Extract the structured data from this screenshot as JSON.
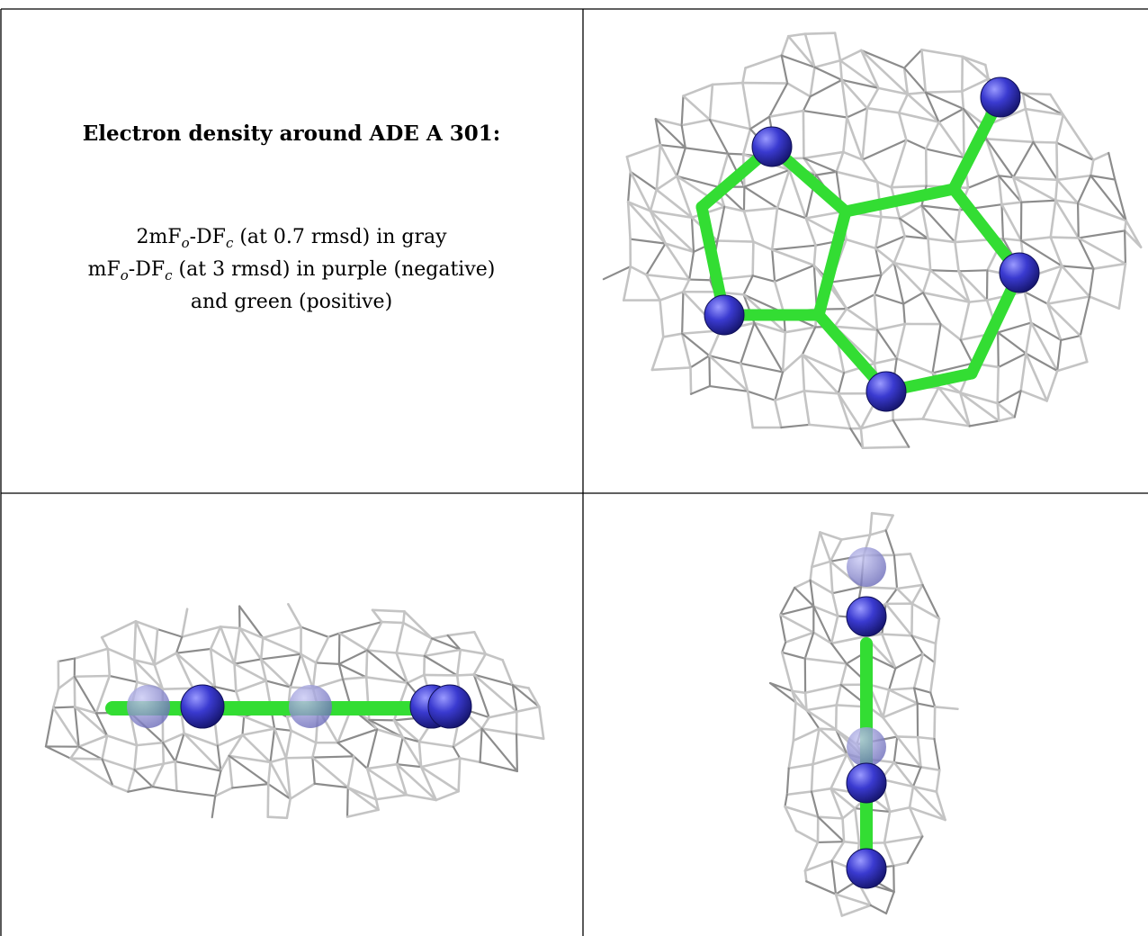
{
  "figure": {
    "title": "Electron density around ADE A 301:",
    "legend": [
      [
        {
          "text": "2mF"
        },
        {
          "text": "o",
          "sub": true
        },
        {
          "text": "-DF"
        },
        {
          "text": "c",
          "sub": true
        },
        {
          "text": " (at 0.7 rmsd) in gray"
        }
      ],
      [
        {
          "text": "mF"
        },
        {
          "text": "o",
          "sub": true
        },
        {
          "text": "-DF"
        },
        {
          "text": "c",
          "sub": true
        },
        {
          "text": " (at 3 rmsd) in purple (negative)"
        }
      ],
      [
        {
          "text": "and green (positive)"
        }
      ]
    ]
  }
}
